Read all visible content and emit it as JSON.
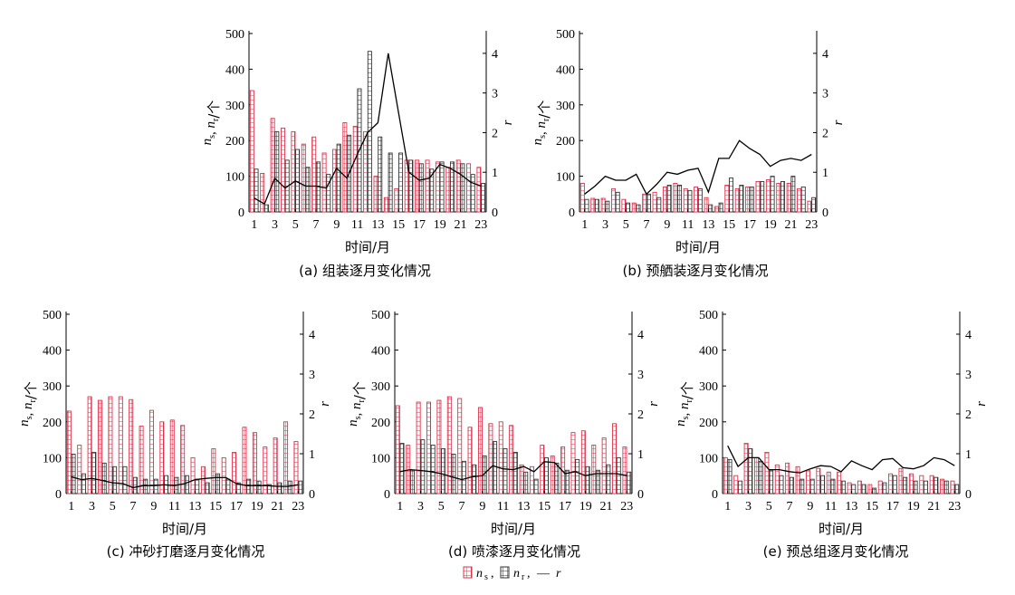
{
  "legend": {
    "ns_label": "n",
    "ns_sub": "s",
    "nr_label": "n",
    "nr_sub": "r",
    "r_label": "r",
    "sep1": ",",
    "sep2": ",",
    "line_glyph": "—"
  },
  "chart_data": [
    {
      "id": "a",
      "type": "bar",
      "caption": "(a)  组装逐月变化情况",
      "xlabel": "时间/月",
      "ylabel": "ns, nr/个",
      "ylabel_parts": [
        "n",
        "s",
        ", ",
        "n",
        "r",
        "/个"
      ],
      "y2label": "r",
      "ylim": [
        0,
        500
      ],
      "y2lim": [
        0,
        4.5
      ],
      "yticks": [
        "0",
        "100",
        "200",
        "300",
        "400",
        "500"
      ],
      "y2ticks": [
        "0",
        "1",
        "2",
        "3",
        "4"
      ],
      "categories": [
        1,
        2,
        3,
        4,
        5,
        6,
        7,
        8,
        9,
        10,
        11,
        12,
        13,
        14,
        15,
        16,
        17,
        18,
        19,
        20,
        21,
        22,
        23
      ],
      "xtick_labels": [
        "1",
        "3",
        "5",
        "7",
        "9",
        "11",
        "13",
        "15",
        "17",
        "19",
        "21",
        "23"
      ],
      "series": [
        {
          "name": "ns",
          "values": [
            340,
            108,
            262,
            235,
            225,
            190,
            210,
            165,
            175,
            250,
            240,
            225,
            100,
            40,
            65,
            145,
            145,
            145,
            140,
            125,
            145,
            135,
            125
          ]
        },
        {
          "name": "nr",
          "values": [
            120,
            20,
            225,
            145,
            175,
            125,
            140,
            105,
            190,
            215,
            345,
            450,
            210,
            165,
            165,
            145,
            135,
            120,
            140,
            140,
            135,
            105,
            80
          ]
        },
        {
          "name": "r",
          "values": [
            0.35,
            0.2,
            0.85,
            0.6,
            0.78,
            0.65,
            0.65,
            0.6,
            1.1,
            0.85,
            1.45,
            2.0,
            2.25,
            4.0,
            2.5,
            1.0,
            0.8,
            0.85,
            1.2,
            1.1,
            0.95,
            0.75,
            0.65
          ]
        }
      ]
    },
    {
      "id": "b",
      "type": "bar",
      "caption": "(b)  预舾装逐月变化情况",
      "xlabel": "时间/月",
      "ylabel": "ns, nr/个",
      "ylabel_parts": [
        "n",
        "s",
        ", ",
        "n",
        "r",
        "/个"
      ],
      "y2label": "r",
      "ylim": [
        0,
        500
      ],
      "y2lim": [
        0,
        4.5
      ],
      "yticks": [
        "0",
        "100",
        "200",
        "300",
        "400",
        "500"
      ],
      "y2ticks": [
        "0",
        "1",
        "2",
        "3",
        "4"
      ],
      "categories": [
        1,
        2,
        3,
        4,
        5,
        6,
        7,
        8,
        9,
        10,
        11,
        12,
        13,
        14,
        15,
        16,
        17,
        18,
        19,
        20,
        21,
        22,
        23
      ],
      "xtick_labels": [
        "1",
        "3",
        "5",
        "7",
        "9",
        "11",
        "13",
        "15",
        "17",
        "19",
        "21",
        "23"
      ],
      "series": [
        {
          "name": "ns",
          "values": [
            80,
            38,
            38,
            65,
            35,
            25,
            50,
            55,
            70,
            80,
            65,
            70,
            40,
            15,
            75,
            65,
            70,
            85,
            90,
            80,
            80,
            65,
            30
          ]
        },
        {
          "name": "nr",
          "values": [
            35,
            35,
            30,
            55,
            25,
            20,
            50,
            40,
            75,
            75,
            60,
            65,
            20,
            25,
            95,
            75,
            70,
            85,
            100,
            85,
            100,
            70,
            40
          ]
        },
        {
          "name": "r",
          "values": [
            0.45,
            0.65,
            0.9,
            0.8,
            0.8,
            0.95,
            0.45,
            0.7,
            1.0,
            0.95,
            1.05,
            1.1,
            0.5,
            1.35,
            1.35,
            1.8,
            1.6,
            1.45,
            1.15,
            1.3,
            1.35,
            1.3,
            1.45
          ]
        }
      ]
    },
    {
      "id": "c",
      "type": "bar",
      "caption": "(c)  冲砂打磨逐月变化情况",
      "xlabel": "时间/月",
      "ylabel": "ns, nr/个",
      "ylabel_parts": [
        "n",
        "s",
        ", ",
        "n",
        "r",
        "/个"
      ],
      "y2label": "r",
      "ylim": [
        0,
        500
      ],
      "y2lim": [
        0,
        4.5
      ],
      "yticks": [
        "0",
        "100",
        "200",
        "300",
        "400",
        "500"
      ],
      "y2ticks": [
        "0",
        "1",
        "2",
        "3",
        "4"
      ],
      "categories": [
        1,
        2,
        3,
        4,
        5,
        6,
        7,
        8,
        9,
        10,
        11,
        12,
        13,
        14,
        15,
        16,
        17,
        18,
        19,
        20,
        21,
        22,
        23
      ],
      "xtick_labels": [
        "1",
        "3",
        "5",
        "7",
        "9",
        "11",
        "13",
        "15",
        "17",
        "19",
        "21",
        "23"
      ],
      "series": [
        {
          "name": "ns",
          "values": [
            230,
            135,
            270,
            260,
            270,
            270,
            262,
            188,
            232,
            200,
            205,
            190,
            100,
            75,
            125,
            100,
            115,
            185,
            170,
            130,
            155,
            200,
            145
          ]
        },
        {
          "name": "nr",
          "values": [
            110,
            55,
            115,
            85,
            75,
            75,
            45,
            40,
            40,
            50,
            45,
            50,
            40,
            30,
            55,
            40,
            30,
            40,
            35,
            25,
            30,
            35,
            35
          ]
        },
        {
          "name": "r",
          "values": [
            0.42,
            0.35,
            0.38,
            0.33,
            0.27,
            0.25,
            0.15,
            0.2,
            0.2,
            0.22,
            0.2,
            0.25,
            0.35,
            0.38,
            0.4,
            0.4,
            0.25,
            0.2,
            0.2,
            0.2,
            0.18,
            0.18,
            0.22
          ]
        }
      ]
    },
    {
      "id": "d",
      "type": "bar",
      "caption": "(d)  喷漆逐月变化情况",
      "xlabel": "时间/月",
      "ylabel": "ns, nr/个",
      "ylabel_parts": [
        "n",
        "s",
        ", ",
        "n",
        "r",
        "/个"
      ],
      "y2label": "r",
      "ylim": [
        0,
        500
      ],
      "y2lim": [
        0,
        4.5
      ],
      "yticks": [
        "0",
        "100",
        "200",
        "300",
        "400",
        "500"
      ],
      "y2ticks": [
        "0",
        "1",
        "2",
        "3",
        "4"
      ],
      "categories": [
        1,
        2,
        3,
        4,
        5,
        6,
        7,
        8,
        9,
        10,
        11,
        12,
        13,
        14,
        15,
        16,
        17,
        18,
        19,
        20,
        21,
        22,
        23
      ],
      "xtick_labels": [
        "1",
        "3",
        "5",
        "7",
        "9",
        "11",
        "13",
        "15",
        "17",
        "19",
        "21",
        "23"
      ],
      "series": [
        {
          "name": "ns",
          "values": [
            245,
            135,
            255,
            255,
            260,
            270,
            265,
            185,
            240,
            195,
            200,
            190,
            80,
            75,
            135,
            105,
            130,
            170,
            175,
            135,
            155,
            195,
            130
          ]
        },
        {
          "name": "nr",
          "values": [
            140,
            65,
            150,
            135,
            125,
            110,
            90,
            80,
            105,
            145,
            125,
            115,
            60,
            40,
            100,
            85,
            65,
            95,
            75,
            65,
            80,
            100,
            60
          ]
        },
        {
          "name": "r",
          "values": [
            0.55,
            0.6,
            0.58,
            0.55,
            0.5,
            0.42,
            0.35,
            0.42,
            0.45,
            0.7,
            0.62,
            0.6,
            0.68,
            0.55,
            0.8,
            0.78,
            0.5,
            0.55,
            0.45,
            0.5,
            0.5,
            0.5,
            0.45
          ]
        }
      ]
    },
    {
      "id": "e",
      "type": "bar",
      "caption": "(e)  预总组逐月变化情况",
      "xlabel": "时间/月",
      "ylabel": "ns, nr/个",
      "ylabel_parts": [
        "n",
        "s",
        ", ",
        "n",
        "r",
        "/个"
      ],
      "y2label": "r",
      "ylim": [
        0,
        500
      ],
      "y2lim": [
        0,
        4.5
      ],
      "yticks": [
        "0",
        "100",
        "200",
        "300",
        "400",
        "500"
      ],
      "y2ticks": [
        "0",
        "1",
        "2",
        "3",
        "4"
      ],
      "categories": [
        1,
        2,
        3,
        4,
        5,
        6,
        7,
        8,
        9,
        10,
        11,
        12,
        13,
        14,
        15,
        16,
        17,
        18,
        19,
        20,
        21,
        22,
        23
      ],
      "xtick_labels": [
        "1",
        "3",
        "5",
        "7",
        "9",
        "11",
        "13",
        "15",
        "17",
        "19",
        "21",
        "23"
      ],
      "series": [
        {
          "name": "ns",
          "values": [
            100,
            50,
            140,
            100,
            115,
            80,
            85,
            75,
            65,
            70,
            60,
            60,
            30,
            35,
            25,
            35,
            55,
            70,
            55,
            50,
            50,
            40,
            35
          ]
        },
        {
          "name": "nr",
          "values": [
            95,
            35,
            125,
            90,
            65,
            50,
            45,
            40,
            40,
            50,
            40,
            35,
            25,
            25,
            15,
            30,
            50,
            45,
            35,
            35,
            45,
            35,
            25
          ]
        },
        {
          "name": "r",
          "values": [
            1.2,
            0.68,
            0.9,
            0.9,
            0.6,
            0.6,
            0.55,
            0.52,
            0.62,
            0.7,
            0.68,
            0.55,
            0.82,
            0.7,
            0.6,
            0.85,
            0.88,
            0.65,
            0.62,
            0.7,
            0.9,
            0.85,
            0.7
          ]
        }
      ]
    }
  ]
}
